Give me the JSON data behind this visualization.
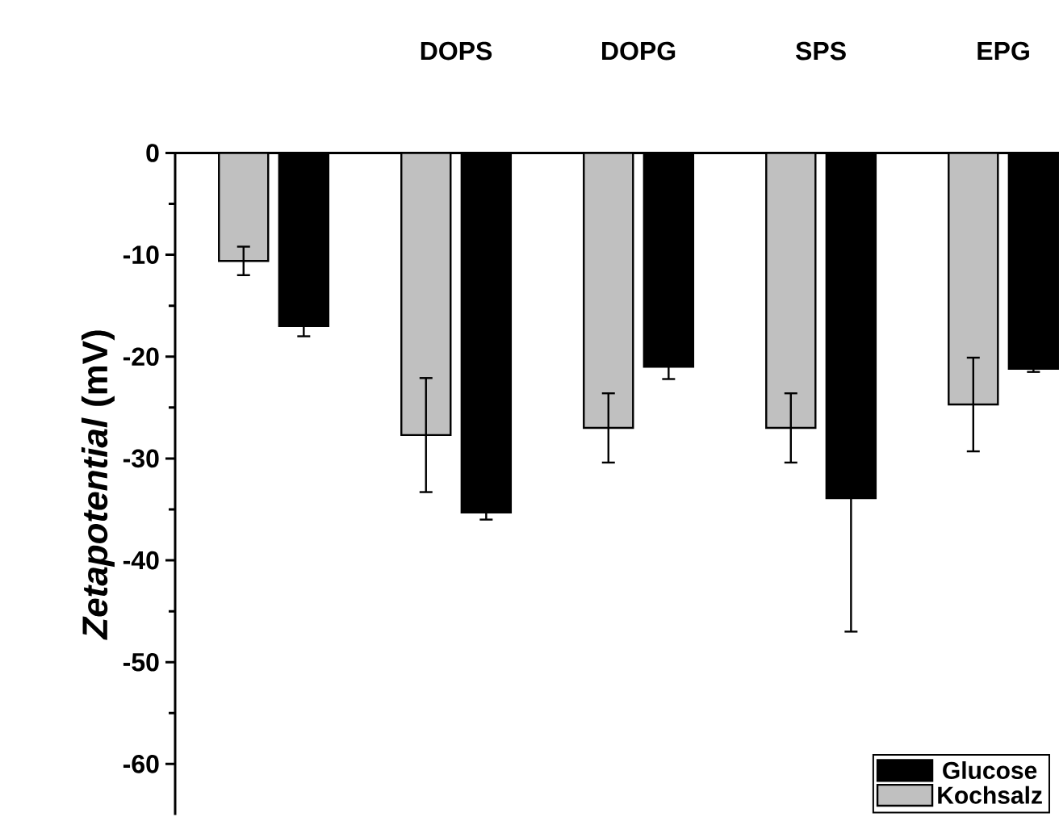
{
  "chart_data": {
    "type": "bar",
    "ylabel": "*Zetapotential* (mV)",
    "categories": [
      null,
      "DOPS",
      "DOPG",
      "SPS",
      "EPG"
    ],
    "series": [
      {
        "name": "Kochsalz",
        "color": "#c0c0c0",
        "values": [
          -10.6,
          -27.7,
          -27.0,
          -27.0,
          -24.7
        ],
        "errors": [
          1.4,
          5.6,
          3.4,
          3.4,
          4.6
        ]
      },
      {
        "name": "Glucose",
        "color": "#000000",
        "values": [
          -17.0,
          -35.3,
          -21.0,
          -33.9,
          -21.2
        ],
        "errors": [
          1.0,
          0.7,
          1.2,
          13.1,
          0.3
        ]
      }
    ],
    "ylim": [
      -65,
      0
    ],
    "yticks": [
      -60,
      -50,
      -40,
      -30,
      -20,
      -10,
      0
    ],
    "legend": "bottom right"
  }
}
